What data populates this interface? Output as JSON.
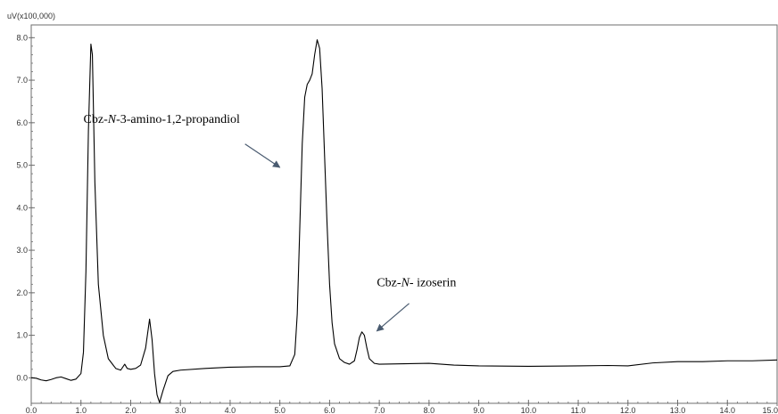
{
  "chart_data": {
    "type": "line",
    "unit_label": "uV(x100,000)",
    "xlim": [
      0.0,
      15.0
    ],
    "ylim": [
      -0.6,
      8.3
    ],
    "x_ticks": [
      "0.0",
      "1.0",
      "2.0",
      "3.0",
      "4.0",
      "5.0",
      "6.0",
      "7.0",
      "8.0",
      "9.0",
      "10.0",
      "11.0",
      "12.0",
      "13.0",
      "14.0",
      "15.0"
    ],
    "y_ticks": [
      "0.0",
      "1.0",
      "2.0",
      "3.0",
      "4.0",
      "5.0",
      "6.0",
      "7.0",
      "8.0"
    ],
    "grid": false,
    "series": [
      {
        "color": "#000000",
        "points": [
          [
            0.0,
            0.0
          ],
          [
            0.1,
            -0.01
          ],
          [
            0.2,
            -0.05
          ],
          [
            0.3,
            -0.07
          ],
          [
            0.4,
            -0.04
          ],
          [
            0.5,
            0.0
          ],
          [
            0.6,
            0.02
          ],
          [
            0.7,
            -0.02
          ],
          [
            0.8,
            -0.06
          ],
          [
            0.9,
            -0.03
          ],
          [
            1.0,
            0.1
          ],
          [
            1.05,
            0.6
          ],
          [
            1.1,
            2.5
          ],
          [
            1.15,
            5.8
          ],
          [
            1.2,
            7.85
          ],
          [
            1.23,
            7.6
          ],
          [
            1.28,
            4.6
          ],
          [
            1.35,
            2.2
          ],
          [
            1.45,
            1.0
          ],
          [
            1.55,
            0.45
          ],
          [
            1.7,
            0.22
          ],
          [
            1.8,
            0.18
          ],
          [
            1.88,
            0.32
          ],
          [
            1.93,
            0.22
          ],
          [
            2.0,
            0.2
          ],
          [
            2.1,
            0.22
          ],
          [
            2.2,
            0.3
          ],
          [
            2.3,
            0.7
          ],
          [
            2.38,
            1.38
          ],
          [
            2.43,
            0.9
          ],
          [
            2.48,
            0.1
          ],
          [
            2.53,
            -0.4
          ],
          [
            2.58,
            -0.58
          ],
          [
            2.65,
            -0.3
          ],
          [
            2.75,
            0.05
          ],
          [
            2.85,
            0.15
          ],
          [
            3.0,
            0.18
          ],
          [
            3.5,
            0.22
          ],
          [
            4.0,
            0.25
          ],
          [
            4.5,
            0.26
          ],
          [
            5.0,
            0.26
          ],
          [
            5.2,
            0.28
          ],
          [
            5.3,
            0.55
          ],
          [
            5.35,
            1.5
          ],
          [
            5.4,
            3.5
          ],
          [
            5.45,
            5.5
          ],
          [
            5.5,
            6.6
          ],
          [
            5.55,
            6.9
          ],
          [
            5.6,
            7.0
          ],
          [
            5.65,
            7.15
          ],
          [
            5.7,
            7.6
          ],
          [
            5.75,
            7.95
          ],
          [
            5.8,
            7.75
          ],
          [
            5.85,
            6.8
          ],
          [
            5.9,
            5.2
          ],
          [
            5.95,
            3.6
          ],
          [
            6.0,
            2.2
          ],
          [
            6.05,
            1.3
          ],
          [
            6.1,
            0.8
          ],
          [
            6.2,
            0.45
          ],
          [
            6.3,
            0.36
          ],
          [
            6.4,
            0.32
          ],
          [
            6.5,
            0.4
          ],
          [
            6.55,
            0.65
          ],
          [
            6.6,
            0.95
          ],
          [
            6.65,
            1.08
          ],
          [
            6.7,
            1.0
          ],
          [
            6.75,
            0.7
          ],
          [
            6.8,
            0.45
          ],
          [
            6.9,
            0.34
          ],
          [
            7.0,
            0.32
          ],
          [
            7.5,
            0.33
          ],
          [
            8.0,
            0.34
          ],
          [
            8.5,
            0.3
          ],
          [
            9.0,
            0.28
          ],
          [
            10.0,
            0.27
          ],
          [
            11.0,
            0.28
          ],
          [
            11.6,
            0.29
          ],
          [
            12.0,
            0.28
          ],
          [
            12.5,
            0.35
          ],
          [
            13.0,
            0.38
          ],
          [
            13.5,
            0.38
          ],
          [
            14.0,
            0.4
          ],
          [
            14.5,
            0.4
          ],
          [
            15.0,
            0.42
          ]
        ]
      }
    ],
    "annotations": [
      {
        "parts": [
          {
            "text": "Cbz-",
            "italic": false
          },
          {
            "text": "N",
            "italic": true
          },
          {
            "text": "-3-amino-1,2-propandiol",
            "italic": false
          }
        ],
        "label_x": 1.05,
        "label_y": 6.0,
        "arrow_from": [
          4.3,
          5.5
        ],
        "arrow_to": [
          5.0,
          4.95
        ],
        "arrow_color": "#4a5b70"
      },
      {
        "parts": [
          {
            "text": "Cbz-",
            "italic": false
          },
          {
            "text": "N",
            "italic": true
          },
          {
            "text": "- izoserin",
            "italic": false
          }
        ],
        "label_x": 6.95,
        "label_y": 2.15,
        "arrow_from": [
          7.6,
          1.75
        ],
        "arrow_to": [
          6.95,
          1.1
        ],
        "arrow_color": "#4a5b70"
      }
    ]
  }
}
